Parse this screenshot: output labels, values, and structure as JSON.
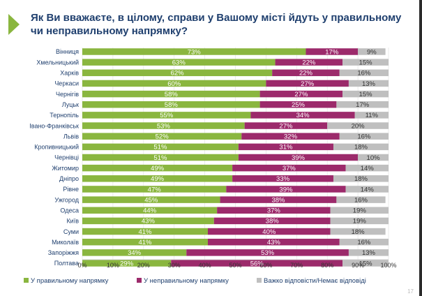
{
  "title": "Як Ви вважаєте, в цілому, справи у Вашому місті йдуть у правильному чи неправильному напрямку?",
  "page_number": "17",
  "colors": {
    "accent": "#8ab63f",
    "correct": "#8ab63f",
    "incorrect": "#9c2a6b",
    "hard": "#bfbfbf",
    "title": "#1f3f6e"
  },
  "chart_data": {
    "type": "bar",
    "orientation": "horizontal",
    "stacked": true,
    "categories": [
      "Вінниця",
      "Хмельницький",
      "Харків",
      "Черкаси",
      "Чернігів",
      "Луцьк",
      "Тернопіль",
      "Івано-Франківськ",
      "Львів",
      "Кропивницький",
      "Чернівці",
      "Житомир",
      "Дніпро",
      "Рівне",
      "Ужгород",
      "Одеса",
      "Київ",
      "Суми",
      "Миколаїв",
      "Запоріжжя",
      "Полтава"
    ],
    "series": [
      {
        "name": "У правильному напрямку",
        "color_key": "correct",
        "values": [
          73,
          63,
          62,
          60,
          58,
          58,
          55,
          53,
          52,
          51,
          51,
          49,
          49,
          47,
          45,
          44,
          43,
          41,
          41,
          34,
          29
        ]
      },
      {
        "name": "У неправильному напрямку",
        "color_key": "incorrect",
        "values": [
          17,
          22,
          22,
          27,
          27,
          25,
          34,
          27,
          32,
          31,
          39,
          37,
          33,
          39,
          38,
          37,
          38,
          40,
          43,
          53,
          56
        ]
      },
      {
        "name": "Важко відповісти/Немає відповіді",
        "color_key": "hard",
        "values": [
          9,
          15,
          16,
          13,
          15,
          17,
          11,
          20,
          16,
          18,
          10,
          14,
          18,
          14,
          16,
          19,
          19,
          18,
          16,
          13,
          15
        ]
      }
    ],
    "xlim": [
      0,
      100
    ],
    "xticks": [
      "0%",
      "10%",
      "20%",
      "30%",
      "40%",
      "50%",
      "60%",
      "70%",
      "80%",
      "90%",
      "100%"
    ],
    "value_suffix": "%",
    "legend_position": "bottom",
    "title": "Як Ви вважаєте, в цілому, справи у Вашому місті йдуть у правильному чи неправильному напрямку?"
  }
}
